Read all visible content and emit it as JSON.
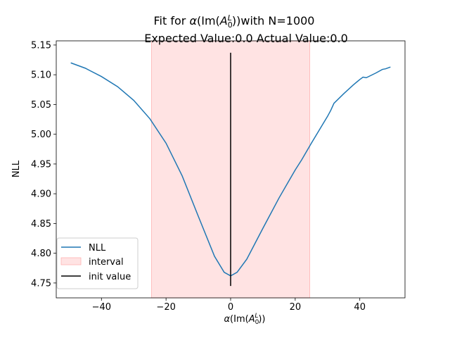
{
  "chart_data": {
    "type": "line",
    "title": {
      "line1_prefix": "Fit for ",
      "line1_alpha": "α",
      "line1_mid": "(Im(",
      "line1_A": "A",
      "line1_sub": "0",
      "line1_sup": "L",
      "line1_suffix": "))with N=1000",
      "line2": "Expected Value:0.0 Actual Value:0.0"
    },
    "xlabel": {
      "alpha": "α",
      "mid": "(Im(",
      "A": "A",
      "sub": "0",
      "sup": "L",
      "suffix": "))"
    },
    "ylabel": "NLL",
    "xlim": [
      -54,
      54
    ],
    "ylim": [
      4.725,
      5.157
    ],
    "xticks": [
      -40,
      -20,
      0,
      20,
      40
    ],
    "xtick_labels": [
      "−40",
      "−20",
      "0",
      "20",
      "40"
    ],
    "yticks": [
      4.75,
      4.8,
      4.85,
      4.9,
      4.95,
      5.0,
      5.05,
      5.1,
      5.15
    ],
    "ytick_labels": [
      "4.75",
      "4.80",
      "4.85",
      "4.90",
      "4.95",
      "5.00",
      "5.05",
      "5.10",
      "5.15"
    ],
    "grid": false,
    "legend_position": "lower-left",
    "series": [
      {
        "name": "NLL",
        "color": "#1f77b4",
        "x": [
          -49.5,
          -45,
          -40,
          -35,
          -30,
          -25,
          -20,
          -15,
          -10,
          -5,
          -2,
          0,
          2,
          5,
          10,
          15,
          20,
          22,
          25,
          28,
          30,
          31,
          32,
          35,
          38,
          40,
          41,
          42,
          45,
          47,
          48,
          49.5
        ],
        "y": [
          5.12,
          5.111,
          5.097,
          5.08,
          5.057,
          5.026,
          4.985,
          4.93,
          4.862,
          4.795,
          4.768,
          4.762,
          4.768,
          4.79,
          4.842,
          4.893,
          4.94,
          4.957,
          4.985,
          5.012,
          5.03,
          5.04,
          5.052,
          5.068,
          5.083,
          5.092,
          5.096,
          5.095,
          5.103,
          5.109,
          5.11,
          5.113
        ]
      }
    ],
    "interval": {
      "name": "interval",
      "x0": -24.5,
      "x1": 24.5,
      "color": "#ffcccc"
    },
    "init_value": {
      "name": "init value",
      "x": 0,
      "y0": 4.745,
      "y1": 5.137,
      "color": "#000000"
    }
  }
}
